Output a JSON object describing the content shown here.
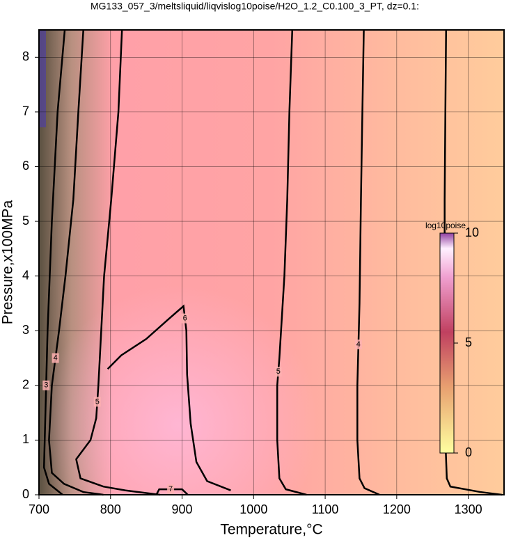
{
  "chart_data": {
    "type": "contour",
    "title": "MG133_057_3/meltsliquid/liqvislog10poise/H2O_1.2_C0.100_3_PT, dz=0.1:",
    "x_label": "Temperature,°C",
    "y_label": "Pressure,x100MPa",
    "xlim": [
      700,
      1350
    ],
    "ylim": [
      0,
      8.5
    ],
    "xticks": [
      700,
      800,
      900,
      1000,
      1100,
      1200,
      1300
    ],
    "yticks": [
      0,
      1,
      2,
      3,
      4,
      5,
      6,
      7,
      8
    ],
    "grid": true,
    "contours": [
      {
        "level": 3,
        "x": [
          736,
          726,
          718,
          712,
          708,
          707,
          714,
          733
        ],
        "y": [
          8.5,
          7,
          5,
          3,
          1,
          0.5,
          0.2,
          0
        ]
      },
      {
        "level": 4,
        "x": [
          762,
          755,
          748,
          737,
          728,
          718,
          714,
          718,
          735,
          762,
          790
        ],
        "y": [
          8.5,
          7,
          5.4,
          4,
          3,
          2,
          1,
          0.4,
          0.2,
          0.05,
          0
        ]
      },
      {
        "level": 5,
        "x": [
          816,
          811,
          801,
          791,
          787,
          783,
          780,
          772,
          752,
          758,
          790,
          821,
          869
        ],
        "y": [
          8.5,
          7,
          5.4,
          4,
          3,
          2,
          1.4,
          1,
          0.65,
          0.3,
          0.15,
          0.08,
          0
        ]
      },
      {
        "level": 6,
        "x": [
          796,
          815,
          850,
          880,
          902,
          906,
          907,
          912,
          920,
          935,
          968
        ],
        "y": [
          2.3,
          2.55,
          2.85,
          3.2,
          3.45,
          3,
          2.2,
          1.3,
          0.6,
          0.25,
          0.08
        ]
      },
      {
        "level": 7,
        "x": [
          864,
          868,
          900,
          908
        ],
        "y": [
          0,
          0.1,
          0.1,
          0
        ]
      },
      {
        "level": 5,
        "x": [
          1054,
          1050,
          1047,
          1043,
          1036,
          1033,
          1033,
          1036,
          1045,
          1074
        ],
        "y": [
          8.5,
          7,
          5.4,
          4,
          2.5,
          2,
          1,
          0.3,
          0.1,
          0
        ]
      },
      {
        "level": 4,
        "x": [
          1154,
          1152,
          1150,
          1148,
          1145,
          1145,
          1148,
          1155,
          1176
        ],
        "y": [
          8.5,
          7,
          5.4,
          3.5,
          2,
          1,
          0.3,
          0.12,
          0
        ]
      },
      {
        "level": 3,
        "x": [
          1269,
          1268,
          1267,
          1267,
          1268,
          1270,
          1275,
          1317,
          1347
        ],
        "y": [
          8.5,
          7,
          5.4,
          3,
          1,
          0.3,
          0.15,
          0.05,
          0
        ]
      }
    ],
    "colorbar": {
      "label": "log10poise",
      "lim": [
        0,
        10
      ],
      "ticks": [
        0,
        5,
        10
      ]
    }
  }
}
